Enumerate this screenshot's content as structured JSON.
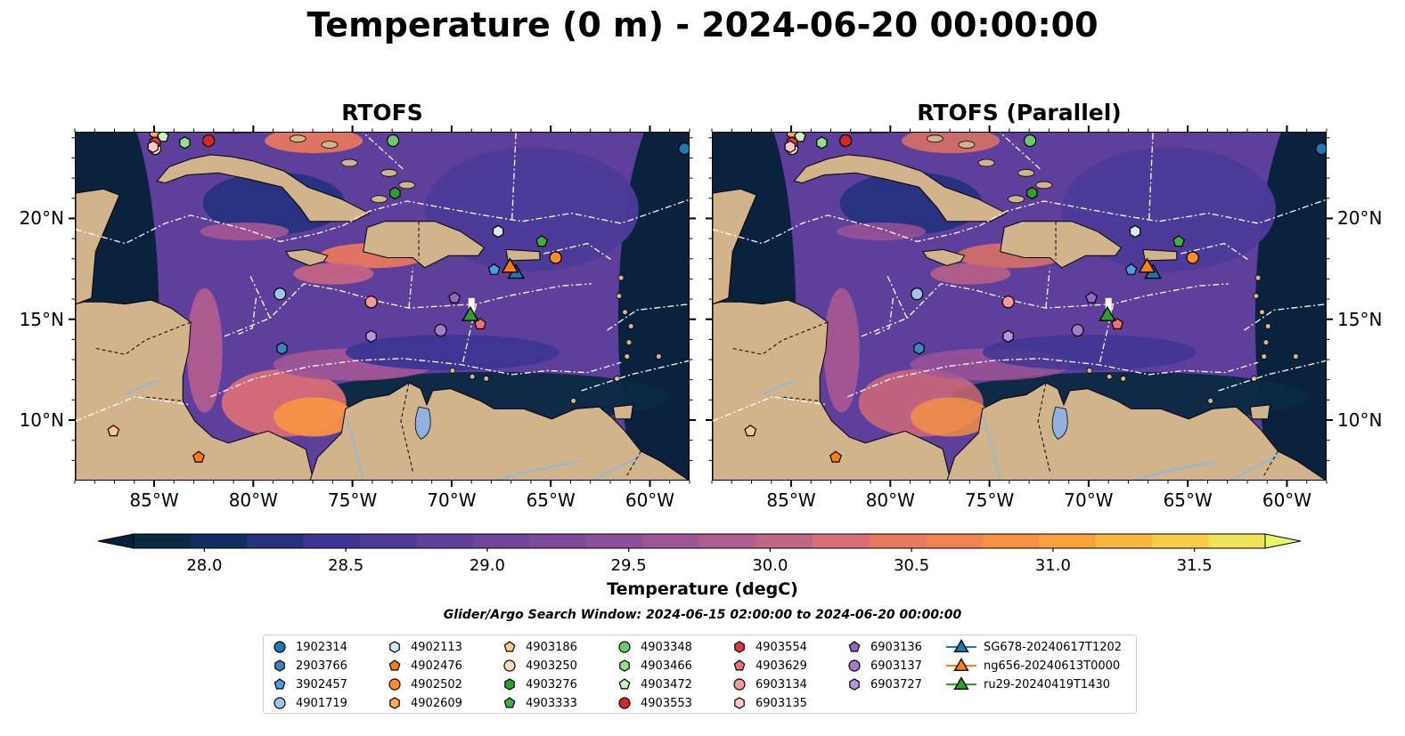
{
  "title": "Temperature (0 m) - 2024-06-20 00:00:00",
  "panels": [
    {
      "title": "RTOFS"
    },
    {
      "title": "RTOFS (Parallel)"
    }
  ],
  "axes": {
    "lon_ticks": [
      "85°W",
      "80°W",
      "75°W",
      "70°W",
      "65°W",
      "60°W"
    ],
    "lat_ticks": [
      "20°N",
      "15°N",
      "10°N"
    ],
    "lon_range": [
      -89,
      -58
    ],
    "lat_range": [
      7,
      24.3
    ]
  },
  "colorbar": {
    "label": "Temperature (degC)",
    "ticks": [
      "28.0",
      "28.5",
      "29.0",
      "29.5",
      "30.0",
      "30.5",
      "31.0",
      "31.5"
    ],
    "range": [
      28.0,
      31.5
    ],
    "colors": [
      "#0a2942",
      "#112c60",
      "#26307f",
      "#3c3594",
      "#4d3a99",
      "#5e3f9c",
      "#6e449c",
      "#7e4a9b",
      "#8e4f99",
      "#9f5596",
      "#b15c90",
      "#c46485",
      "#d86d77",
      "#e7775f",
      "#f0834f",
      "#f59244",
      "#f9a13f",
      "#f8b63f",
      "#f5cc45",
      "#f0e256"
    ],
    "under_color": "#06213a",
    "over_color": "#e8f86a"
  },
  "search_window": "Glider/Argo Search Window: 2024-06-15 02:00:00 to 2024-06-20 00:00:00",
  "legend": [
    {
      "label": "1902314",
      "marker": "circle",
      "color": "#1f77b4"
    },
    {
      "label": "2903766",
      "marker": "hexagon",
      "color": "#3e86c1"
    },
    {
      "label": "3902457",
      "marker": "pentagon",
      "color": "#4a9fe0"
    },
    {
      "label": "4901719",
      "marker": "circle",
      "color": "#9fc6ea"
    },
    {
      "label": "4902113",
      "marker": "hexagon",
      "color": "#d4ecfa"
    },
    {
      "label": "4902476",
      "marker": "pentagon",
      "color": "#ff7f0e"
    },
    {
      "label": "4902502",
      "marker": "circle",
      "color": "#ff8c2a"
    },
    {
      "label": "4902609",
      "marker": "hexagon",
      "color": "#ffaa55"
    },
    {
      "label": "4903186",
      "marker": "pentagon",
      "color": "#ffc58a"
    },
    {
      "label": "4903250",
      "marker": "circle",
      "color": "#ffdcbc"
    },
    {
      "label": "4903276",
      "marker": "hexagon",
      "color": "#2ca02c"
    },
    {
      "label": "4903333",
      "marker": "pentagon",
      "color": "#3cb043"
    },
    {
      "label": "4903348",
      "marker": "circle",
      "color": "#6cc96c"
    },
    {
      "label": "4903466",
      "marker": "hexagon",
      "color": "#98df8a"
    },
    {
      "label": "4903472",
      "marker": "pentagon",
      "color": "#cdf2c2"
    },
    {
      "label": "4903553",
      "marker": "circle",
      "color": "#d62728"
    },
    {
      "label": "4903554",
      "marker": "hexagon",
      "color": "#e03c3c"
    },
    {
      "label": "4903629",
      "marker": "pentagon",
      "color": "#f07070"
    },
    {
      "label": "6903134",
      "marker": "circle",
      "color": "#f59a9a"
    },
    {
      "label": "6903135",
      "marker": "hexagon",
      "color": "#fcc8c8"
    },
    {
      "label": "6903136",
      "marker": "pentagon",
      "color": "#9467bd"
    },
    {
      "label": "6903137",
      "marker": "circle",
      "color": "#a27cc9"
    },
    {
      "label": "6903727",
      "marker": "hexagon",
      "color": "#b595dc"
    },
    {
      "label": "SG678-20240617T1202",
      "marker": "triangle-line",
      "color": "#1f77b4"
    },
    {
      "label": "ng656-20240613T0000",
      "marker": "triangle-line",
      "color": "#ff7f0e"
    },
    {
      "label": "ru29-20240419T1430",
      "marker": "triangle-line",
      "color": "#2ca02c"
    }
  ],
  "observations": [
    {
      "id": "1902314",
      "lon": -58.3,
      "lat": 23.5
    },
    {
      "id": "2903766",
      "lon": -78.6,
      "lat": 13.6
    },
    {
      "id": "3902457",
      "lon": -67.9,
      "lat": 17.5
    },
    {
      "id": "4901719",
      "lon": -78.7,
      "lat": 16.3
    },
    {
      "id": "4902113",
      "lon": -67.7,
      "lat": 19.4
    },
    {
      "id": "4902476",
      "lon": -82.8,
      "lat": 8.2
    },
    {
      "id": "4902502",
      "lon": -64.8,
      "lat": 18.1
    },
    {
      "id": "4902609",
      "lon": -85.0,
      "lat": 24.3
    },
    {
      "id": "4903186",
      "lon": -87.1,
      "lat": 9.5
    },
    {
      "id": "4903250",
      "lon": -85.0,
      "lat": 23.5
    },
    {
      "id": "4903276",
      "lon": -72.9,
      "lat": 21.3
    },
    {
      "id": "4903333",
      "lon": -65.5,
      "lat": 18.9
    },
    {
      "id": "4903348",
      "lon": -73.0,
      "lat": 23.9
    },
    {
      "id": "4903466",
      "lon": -83.5,
      "lat": 23.8
    },
    {
      "id": "4903472",
      "lon": -84.6,
      "lat": 24.1
    },
    {
      "id": "4903553",
      "lon": -82.3,
      "lat": 23.9
    },
    {
      "id": "4903554",
      "lon": -85.0,
      "lat": 23.8
    },
    {
      "id": "4903629",
      "lon": -68.6,
      "lat": 14.8
    },
    {
      "id": "6903134",
      "lon": -74.1,
      "lat": 15.9
    },
    {
      "id": "6903135",
      "lon": -85.1,
      "lat": 23.6
    },
    {
      "id": "6903136",
      "lon": -69.9,
      "lat": 16.1
    },
    {
      "id": "6903137",
      "lon": -70.6,
      "lat": 14.5
    },
    {
      "id": "6903727",
      "lon": -74.1,
      "lat": 14.2
    },
    {
      "id": "SG678-20240617T1202",
      "lon": -66.8,
      "lat": 17.3
    },
    {
      "id": "ng656-20240613T0000",
      "lon": -67.1,
      "lat": 17.6
    },
    {
      "id": "ru29-20240419T1430",
      "lon": -69.1,
      "lat": 15.2
    }
  ],
  "colors": {
    "land": "#d2b48c",
    "deep_water": "#06213a",
    "river": "#98b6d3",
    "lake": "#8fb2e0",
    "eez_line": "#ffffff"
  }
}
